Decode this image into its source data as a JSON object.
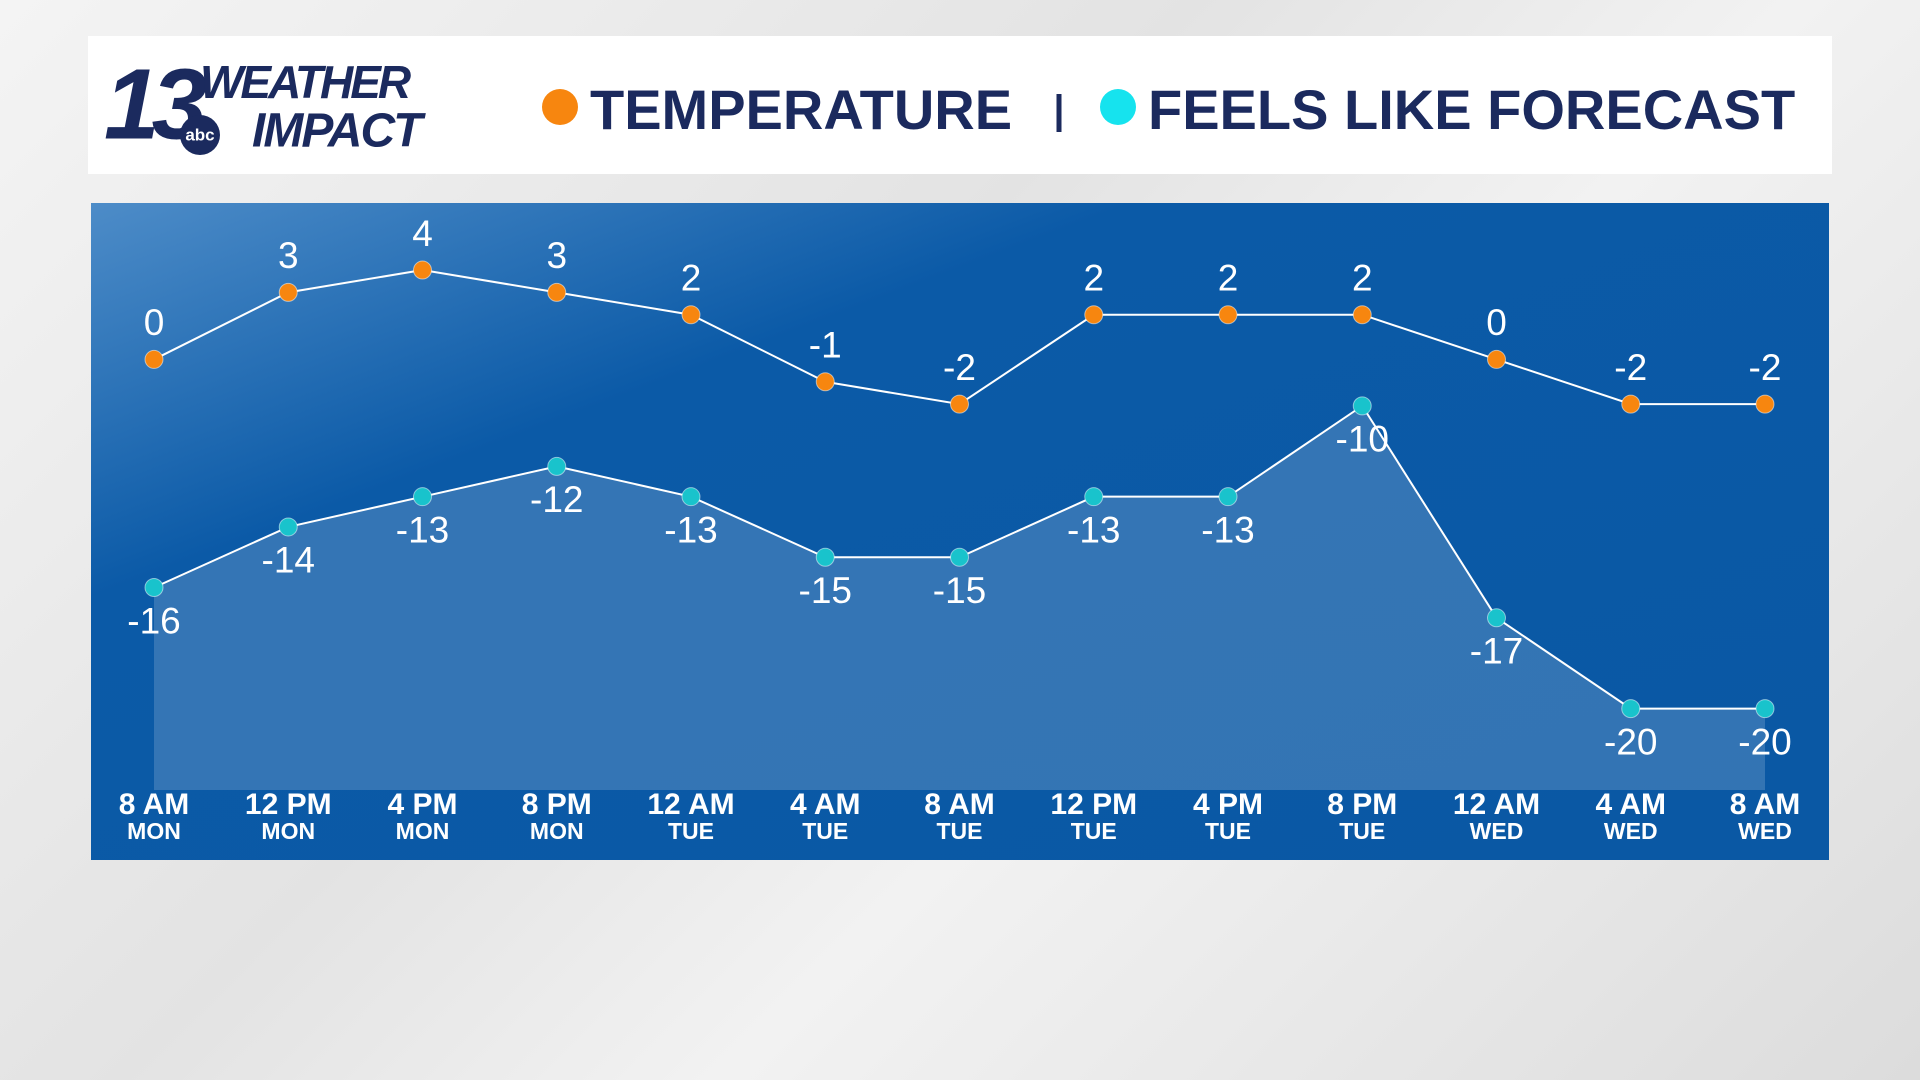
{
  "logo": {
    "number": "13",
    "line1": "WEATHER",
    "line2": "IMPACT",
    "network": "abc"
  },
  "chart_data": {
    "type": "line",
    "categories": [
      {
        "time": "8 AM",
        "day": "MON"
      },
      {
        "time": "12 PM",
        "day": "MON"
      },
      {
        "time": "4 PM",
        "day": "MON"
      },
      {
        "time": "8 PM",
        "day": "MON"
      },
      {
        "time": "12 AM",
        "day": "TUE"
      },
      {
        "time": "4 AM",
        "day": "TUE"
      },
      {
        "time": "8 AM",
        "day": "TUE"
      },
      {
        "time": "12 PM",
        "day": "TUE"
      },
      {
        "time": "4 PM",
        "day": "TUE"
      },
      {
        "time": "8 PM",
        "day": "TUE"
      },
      {
        "time": "12 AM",
        "day": "WED"
      },
      {
        "time": "4 AM",
        "day": "WED"
      },
      {
        "time": "8 AM",
        "day": "WED"
      }
    ],
    "series": [
      {
        "name": "TEMPERATURE",
        "color": "#f7860f",
        "legend_color": "#f7860f",
        "values": [
          0,
          3,
          4,
          3,
          2,
          -1,
          -2,
          2,
          2,
          2,
          0,
          -2,
          -2
        ]
      },
      {
        "name": "FEELS LIKE FORECAST",
        "color": "#19c3cc",
        "legend_color": "#16e3ee",
        "axis": "y2",
        "area": true,
        "values": [
          -16,
          -14,
          -13,
          -12,
          -13,
          -15,
          -15,
          -13,
          -13,
          -10,
          -17,
          -20,
          -20
        ]
      }
    ],
    "ylim": [
      -22.4,
      7
    ],
    "y2lim": [
      -25,
      -3.3
    ]
  }
}
